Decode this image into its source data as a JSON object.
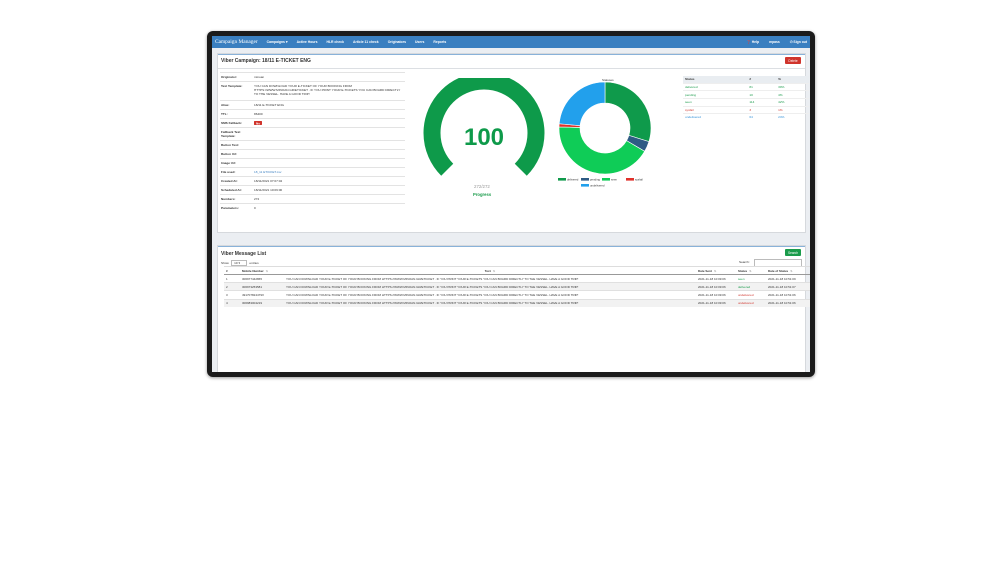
{
  "navbar": {
    "brand": "Campaign Manager",
    "items": [
      "Campaigns ▾",
      "Active Hours",
      "HLR check",
      "Article 11 check",
      "Originators",
      "Users",
      "Reports"
    ],
    "right": [
      "❓ Help",
      "mpass",
      "⏻ Sign out"
    ]
  },
  "campaign": {
    "title": "Viber Campaign: 18/11 E-TICKET ENG",
    "delete_label": "Delete",
    "details": [
      {
        "label": "Originator:",
        "value": "minoan"
      },
      {
        "label": "Text Template:",
        "value": "YOU CAN DOWNLOAD YOUR E-TICKET OF YOUR BOOKING FROM HTTPS://WWW.MINOAN.GR/ETICKET . IF YOU PRINT YOUR E-TICKETS YOU CAN BOARD DIRECTLY TO THE VESSEL. HAVE A GOOD TRIP!"
      },
      {
        "label": "Alias:",
        "value": "18/11 E-TICKET ENG"
      },
      {
        "label": "TTL:",
        "value": "86400"
      },
      {
        "label": "SMS Fallback:",
        "value": "No"
      },
      {
        "label": "Fallback Text Template:",
        "value": ""
      },
      {
        "label": "Button Text:",
        "value": ""
      },
      {
        "label": "Button Url:",
        "value": ""
      },
      {
        "label": "Image Url:",
        "value": ""
      },
      {
        "label": "File used:",
        "value": "18_11 ETICKET.csv"
      },
      {
        "label": "Created At:",
        "value": "18/11/2021 07:07:04"
      },
      {
        "label": "Scheduled At:",
        "value": "18/11/2021 10:09:00"
      },
      {
        "label": "Numbers:",
        "value": "272"
      },
      {
        "label": "Parameters:",
        "value": "0"
      }
    ],
    "gauge": {
      "value": 100,
      "sent": 272,
      "total": 272,
      "count_label": "272/272",
      "label": "Progress",
      "color": "#0e9a4a"
    },
    "donut": {
      "title": "Statuses",
      "legend": [
        "delivered",
        "pending",
        "seen",
        "sysfail",
        "undelivered"
      ]
    },
    "status_table": {
      "headers": [
        "Status",
        "#",
        "%"
      ],
      "rows": [
        {
          "status": "delivered",
          "count": "81",
          "pct": "30%",
          "color": "#1a9b4b"
        },
        {
          "status": "pending",
          "count": "10",
          "pct": "4%",
          "color": "#1a9b4b"
        },
        {
          "status": "seen",
          "count": "114",
          "pct": "42%",
          "color": "#1a9b4b"
        },
        {
          "status": "sysfail",
          "count": "3",
          "pct": "1%",
          "color": "#d0342c"
        },
        {
          "status": "undelivered",
          "count": "64",
          "pct": "24%",
          "color": "#2e8fd8"
        }
      ]
    }
  },
  "chart_data": {
    "type": "pie",
    "title": "Statuses",
    "categories": [
      "delivered",
      "pending",
      "seen",
      "sysfail",
      "undelivered"
    ],
    "values": [
      81,
      10,
      114,
      3,
      64
    ],
    "colors": [
      "#0f9a4b",
      "#2e5b84",
      "#0fcc57",
      "#e0302a",
      "#22a0ec"
    ],
    "legend_position": "bottom"
  },
  "messages": {
    "title": "Viber Message List",
    "search_button": "Search",
    "show_label": "Show",
    "show_value": "10",
    "entries_label": "entries",
    "search_label": "Search:",
    "headers": [
      "#",
      "Mobile Number",
      "Text",
      "Date Sent",
      "Status",
      "Date of Status"
    ],
    "rows": [
      {
        "n": "1",
        "mobile": "306977442865",
        "text": "YOU CAN DOWNLOAD YOUR E-TICKET OF YOUR BOOKING FROM HTTPS://WWW.MINOAN.GR/ETICKET . IF YOU PRINT YOUR E-TICKETS YOU CAN BOARD DIRECTLY TO THE VESSEL. HAVE A GOOD TRIP!",
        "sent": "2021-11-18 10:09:06",
        "status": "seen",
        "status_color": "#1a9b4b",
        "date_status": "2021-11-18 10:51:09"
      },
      {
        "n": "2",
        "mobile": "306973253581",
        "text": "YOU CAN DOWNLOAD YOUR E-TICKET OF YOUR BOOKING FROM HTTPS://WWW.MINOAN.GR/ETICKET . IF YOU PRINT YOUR E-TICKETS YOU CAN BOARD DIRECTLY TO THE VESSEL. HAVE A GOOD TRIP!",
        "sent": "2021-11-18 10:09:06",
        "status": "delivered",
        "status_color": "#1a9b4b",
        "date_status": "2021-11-18 10:51:07"
      },
      {
        "n": "3",
        "mobile": "491707824479X",
        "text": "YOU CAN DOWNLOAD YOUR E-TICKET OF YOUR BOOKING FROM HTTPS://WWW.MINOAN.GR/ETICKET . IF YOU PRINT YOUR E-TICKETS YOU CAN BOARD DIRECTLY TO THE VESSEL. HAVE A GOOD TRIP!",
        "sent": "2021-11-18 10:09:06",
        "status": "undelivered",
        "status_color": "#d0342c",
        "date_status": "2021-11-18 10:51:06"
      },
      {
        "n": "4",
        "mobile": "306983004219",
        "text": "YOU CAN DOWNLOAD YOUR E-TICKET OF YOUR BOOKING FROM HTTPS://WWW.MINOAN.GR/ETICKET . IF YOU PRINT YOUR E-TICKETS YOU CAN BOARD DIRECTLY TO THE VESSEL. HAVE A GOOD TRIP!",
        "sent": "2021-11-18 10:09:06",
        "status": "undelivered",
        "status_color": "#d0342c",
        "date_status": "2021-11-18 10:51:06"
      }
    ]
  },
  "colors": {
    "navbar": "#3a7fc0",
    "delete": "#d0342c",
    "search": "#1a9b4b"
  }
}
